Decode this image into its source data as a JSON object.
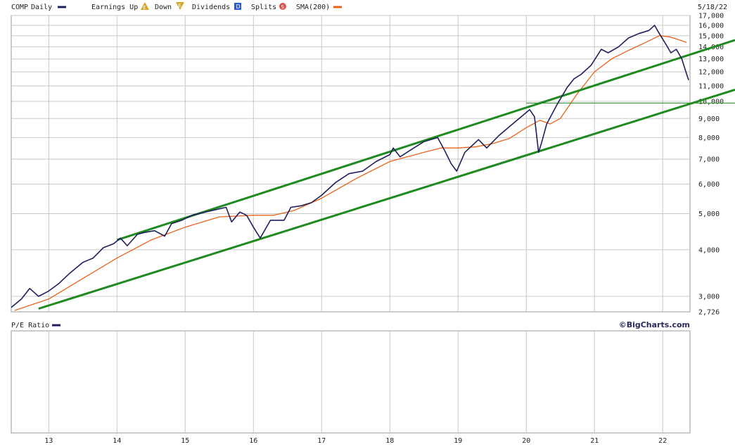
{
  "legend": {
    "symbol": "COMP",
    "period": "Daily",
    "earnings_up": "Earnings Up",
    "earnings_down": "Down",
    "dividends": "Dividends",
    "splits": "Splits",
    "sma": "SMA(200)",
    "date": "5/18/22",
    "earnings_up_icon": "E",
    "earnings_down_icon": "E",
    "dividends_icon": "D",
    "splits_icon": "S"
  },
  "lower_panel": {
    "label": "P/E Ratio",
    "brand": "©BigCharts.com"
  },
  "colors": {
    "price": "#1f1f5c",
    "sma": "#e8641c",
    "trend": "#1f8a1f",
    "grid": "#c8c8c8",
    "earnings_up": "#d9a521",
    "dividends": "#2a5bd7",
    "splits": "#d9534f"
  },
  "chart_data": {
    "type": "line",
    "title": "COMP Daily",
    "y_scale": "log",
    "ylim": [
      2726,
      17000
    ],
    "xlim": [
      2012.45,
      2022.4
    ],
    "x_tick_labels": [
      "13",
      "14",
      "15",
      "16",
      "17",
      "18",
      "19",
      "20",
      "21",
      "22"
    ],
    "x_ticks": [
      2013,
      2014,
      2015,
      2016,
      2017,
      2018,
      2019,
      2020,
      2021,
      2022
    ],
    "y_tick_labels": [
      "17,000",
      "16,000",
      "15,000",
      "14,000",
      "13,000",
      "12,000",
      "11,000",
      "10,000",
      "9,000",
      "8,000",
      "7,000",
      "6,000",
      "5,000",
      "4,000",
      "3,000",
      "2,726"
    ],
    "y_ticks": [
      17000,
      16000,
      15000,
      14000,
      13000,
      12000,
      11000,
      10000,
      9000,
      8000,
      7000,
      6000,
      5000,
      4000,
      3000,
      2726
    ],
    "grid": true,
    "legend_position": "top-left",
    "series": [
      {
        "name": "COMP",
        "x": [
          2012.45,
          2012.6,
          2012.72,
          2012.85,
          2013.0,
          2013.15,
          2013.3,
          2013.5,
          2013.65,
          2013.8,
          2013.95,
          2014.05,
          2014.15,
          2014.3,
          2014.4,
          2014.55,
          2014.7,
          2014.8,
          2014.95,
          2015.1,
          2015.3,
          2015.5,
          2015.6,
          2015.68,
          2015.8,
          2015.9,
          2016.0,
          2016.1,
          2016.25,
          2016.45,
          2016.55,
          2016.7,
          2016.85,
          2017.0,
          2017.2,
          2017.4,
          2017.6,
          2017.8,
          2018.0,
          2018.05,
          2018.15,
          2018.3,
          2018.5,
          2018.7,
          2018.8,
          2018.9,
          2018.98,
          2019.1,
          2019.3,
          2019.42,
          2019.6,
          2019.8,
          2020.05,
          2020.12,
          2020.18,
          2020.22,
          2020.3,
          2020.45,
          2020.6,
          2020.7,
          2020.8,
          2020.95,
          2021.1,
          2021.2,
          2021.35,
          2021.5,
          2021.65,
          2021.8,
          2021.88,
          2021.95,
          2022.05,
          2022.12,
          2022.2,
          2022.28,
          2022.34,
          2022.38
        ],
        "y": [
          2800,
          2950,
          3150,
          3000,
          3100,
          3250,
          3450,
          3700,
          3800,
          4050,
          4150,
          4300,
          4100,
          4400,
          4450,
          4500,
          4350,
          4700,
          4800,
          4950,
          5050,
          5150,
          5200,
          4750,
          5050,
          4950,
          4600,
          4300,
          4800,
          4800,
          5200,
          5250,
          5350,
          5600,
          6050,
          6400,
          6500,
          6900,
          7200,
          7500,
          7100,
          7400,
          7800,
          8000,
          7400,
          6800,
          6500,
          7300,
          7900,
          7500,
          8100,
          8700,
          9500,
          9100,
          7300,
          7700,
          8700,
          9800,
          10900,
          11500,
          11800,
          12500,
          13800,
          13500,
          14000,
          14800,
          15200,
          15500,
          16000,
          15200,
          14200,
          13500,
          13800,
          13000,
          12000,
          11400
        ]
      },
      {
        "name": "SMA(200)",
        "x": [
          2012.5,
          2013.0,
          2013.5,
          2014.0,
          2014.5,
          2015.0,
          2015.5,
          2016.0,
          2016.3,
          2016.6,
          2017.0,
          2017.5,
          2018.0,
          2018.5,
          2018.75,
          2019.0,
          2019.25,
          2019.5,
          2019.75,
          2020.0,
          2020.2,
          2020.35,
          2020.5,
          2020.75,
          2021.0,
          2021.25,
          2021.5,
          2021.75,
          2021.95,
          2022.1,
          2022.25,
          2022.35
        ],
        "y": [
          2750,
          2950,
          3350,
          3800,
          4250,
          4600,
          4900,
          4950,
          4950,
          5100,
          5500,
          6200,
          6900,
          7300,
          7500,
          7500,
          7550,
          7700,
          7950,
          8500,
          8900,
          8700,
          9000,
          10500,
          12000,
          13000,
          13700,
          14400,
          15000,
          14900,
          14600,
          14400
        ]
      },
      {
        "name": "Upper trendline",
        "x": [
          2014.0,
          2022.4
        ],
        "y": [
          4250,
          13350
        ]
      },
      {
        "name": "Lower trendline",
        "x": [
          2012.85,
          2022.4
        ],
        "y": [
          2780,
          9850
        ]
      },
      {
        "name": "Horizontal line",
        "x": [
          2020.0,
          2022.4
        ],
        "y": [
          9900,
          9900
        ]
      }
    ]
  }
}
